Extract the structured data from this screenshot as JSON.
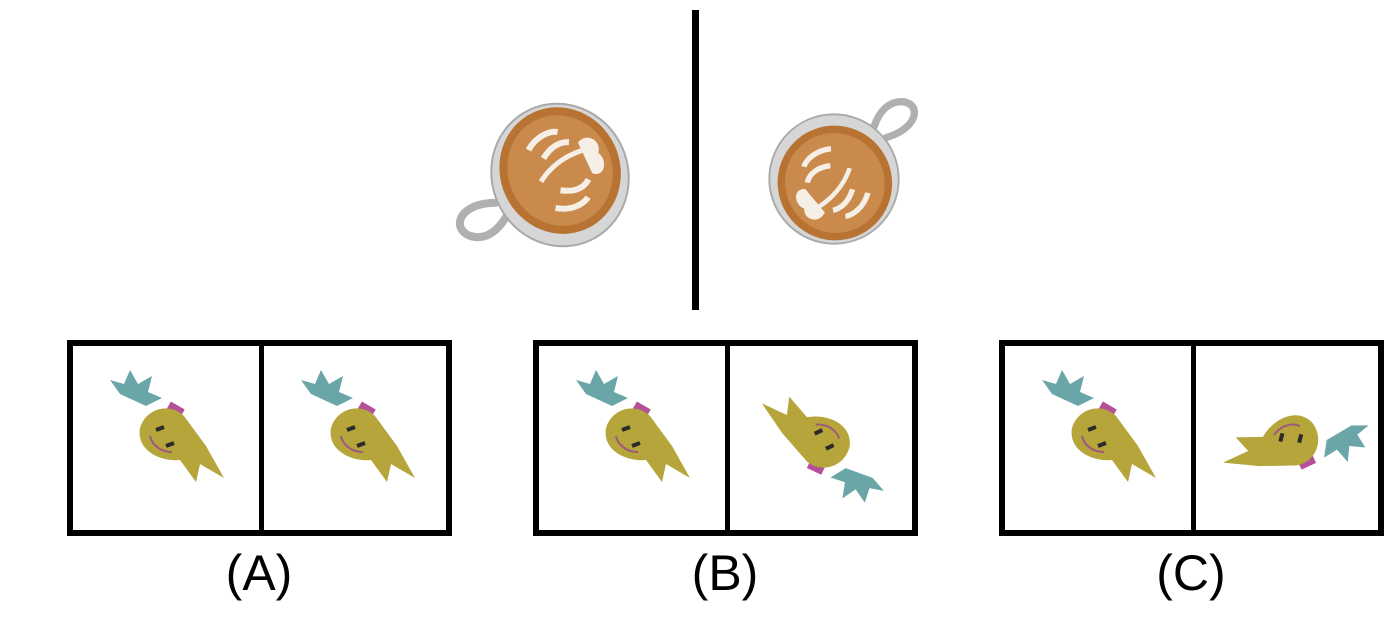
{
  "example": {
    "left_image": "latte-cup-icon",
    "right_image": "latte-cup-icon"
  },
  "options": [
    {
      "label": "(A)",
      "left_figure": "yellow-cat-figure-icon",
      "right_figure": "yellow-cat-figure-icon"
    },
    {
      "label": "(B)",
      "left_figure": "yellow-cat-figure-icon",
      "right_figure": "yellow-cat-figure-icon"
    },
    {
      "label": "(C)",
      "left_figure": "yellow-cat-figure-icon",
      "right_figure": "yellow-cat-figure-icon"
    }
  ],
  "colors": {
    "border": "#000000",
    "cup": "#d9d9d9",
    "coffee": "#b87333",
    "foam": "#f5efe6",
    "figure_body": "#b5a53a",
    "figure_teal": "#6aa6a8",
    "figure_pink": "#b4509a"
  }
}
